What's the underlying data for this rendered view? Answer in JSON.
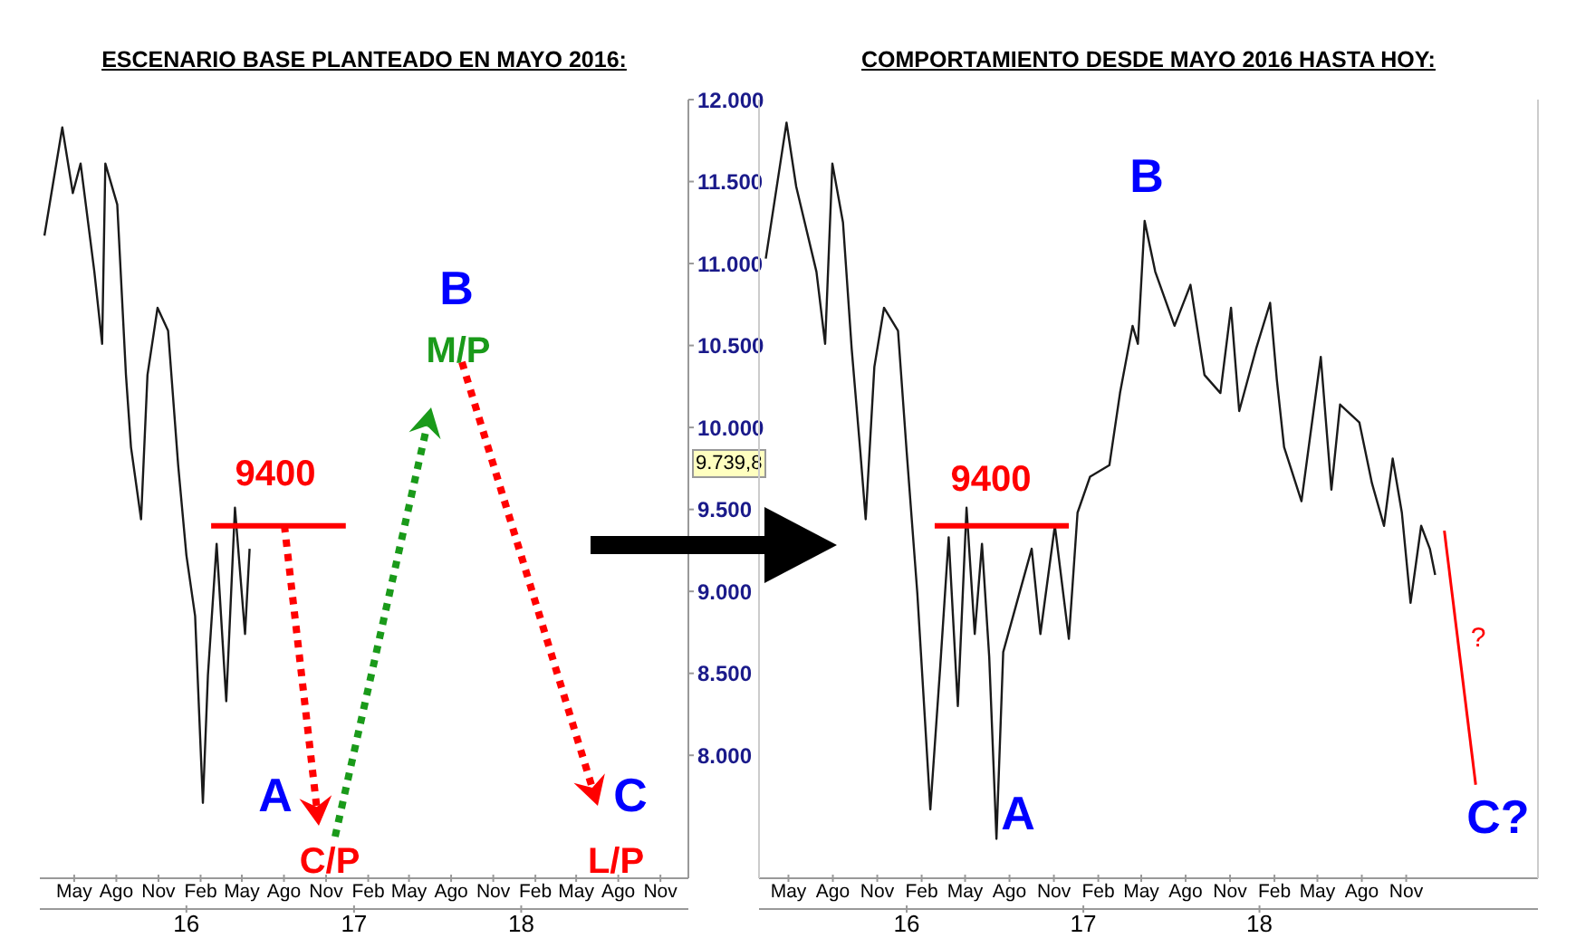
{
  "chart_data": [
    {
      "type": "line",
      "title": "ESCENARIO BASE PLANTEADO EN MAYO 2016:",
      "xlim": [
        "2015-02-15",
        "2019-01-01"
      ],
      "ylim": [
        7250,
        12000
      ],
      "xticks": [
        {
          "value": "2015-05-01",
          "label": "May"
        },
        {
          "value": "2015-08-01",
          "label": "Ago"
        },
        {
          "value": "2015-11-01",
          "label": "Nov"
        },
        {
          "value": "2016-02-01",
          "label": "Feb"
        },
        {
          "value": "2016-05-01",
          "label": "May"
        },
        {
          "value": "2016-08-01",
          "label": "Ago"
        },
        {
          "value": "2016-11-01",
          "label": "Nov"
        },
        {
          "value": "2017-02-01",
          "label": "Feb"
        },
        {
          "value": "2017-05-01",
          "label": "May"
        },
        {
          "value": "2017-08-01",
          "label": "Ago"
        },
        {
          "value": "2017-11-01",
          "label": "Nov"
        },
        {
          "value": "2018-02-01",
          "label": "Feb"
        },
        {
          "value": "2018-05-01",
          "label": "May"
        },
        {
          "value": "2018-08-01",
          "label": "Ago"
        },
        {
          "value": "2018-11-01",
          "label": "Nov"
        }
      ],
      "x2lim": [
        "2015-02-15",
        "2019-01-01"
      ],
      "x2ticks": [
        {
          "value": "2016-01-01",
          "label": "16"
        },
        {
          "value": "2017-01-01",
          "label": "17"
        },
        {
          "value": "2018-01-01",
          "label": "18"
        }
      ],
      "yticks": [
        {
          "value": 8000,
          "label": "8.000"
        },
        {
          "value": 8500,
          "label": "8.500"
        },
        {
          "value": 9000,
          "label": "9.000"
        },
        {
          "value": 9500,
          "label": "9.500"
        },
        {
          "value": 10000,
          "label": "10.000"
        },
        {
          "value": 10500,
          "label": "10.500"
        },
        {
          "value": 11000,
          "label": "11.000"
        },
        {
          "value": 11500,
          "label": "11.500"
        },
        {
          "value": 12000,
          "label": "12.000"
        }
      ],
      "series": [
        {
          "color": "#1a1a1a",
          "x": [
            "2015-02-25",
            "2015-04-05",
            "2015-04-28",
            "2015-05-15",
            "2015-06-14",
            "2015-07-01",
            "2015-07-08",
            "2015-08-03",
            "2015-08-22",
            "2015-09-02",
            "2015-09-24",
            "2015-10-08",
            "2015-10-30",
            "2015-11-22",
            "2015-12-14",
            "2016-01-01",
            "2016-01-20",
            "2016-02-06",
            "2016-02-17",
            "2016-03-07",
            "2016-03-28",
            "2016-04-16",
            "2016-05-08",
            "2016-05-18"
          ],
          "values": [
            11170,
            11830,
            11430,
            11610,
            10950,
            10510,
            11610,
            11360,
            10320,
            9880,
            9440,
            10320,
            10730,
            10590,
            9770,
            9220,
            8850,
            7710,
            8490,
            9290,
            8330,
            9510,
            8740,
            9260
          ]
        },
        {
          "color": "#ff0000",
          "x": [
            "2016-02-24",
            "2016-12-14"
          ],
          "values": [
            9400,
            9400
          ]
        }
      ],
      "annotations": [
        "9400",
        "A",
        "B",
        "C",
        "C/P",
        "M/P",
        "L/P",
        "9.739,8"
      ]
    },
    {
      "type": "line",
      "title": "COMPORTAMIENTO DESDE MAYO 2016 HASTA HOY:",
      "xlim": [
        "2015-03-01",
        "2019-08-01"
      ],
      "ylim": [
        7250,
        12000
      ],
      "tick_labels": "x",
      "xticks": [
        {
          "value": "2015-05-01",
          "label": "May"
        },
        {
          "value": "2015-08-01",
          "label": "Ago"
        },
        {
          "value": "2015-11-01",
          "label": "Nov"
        },
        {
          "value": "2016-02-01",
          "label": "Feb"
        },
        {
          "value": "2016-05-01",
          "label": "May"
        },
        {
          "value": "2016-08-01",
          "label": "Ago"
        },
        {
          "value": "2016-11-01",
          "label": "Nov"
        },
        {
          "value": "2017-02-01",
          "label": "Feb"
        },
        {
          "value": "2017-05-01",
          "label": "May"
        },
        {
          "value": "2017-08-01",
          "label": "Ago"
        },
        {
          "value": "2017-11-01",
          "label": "Nov"
        },
        {
          "value": "2018-02-01",
          "label": "Feb"
        },
        {
          "value": "2018-05-01",
          "label": "May"
        },
        {
          "value": "2018-08-01",
          "label": "Ago"
        },
        {
          "value": "2018-11-01",
          "label": "Nov"
        }
      ],
      "x2lim": [
        "2015-03-01",
        "2019-08-01"
      ],
      "x2ticks": [
        {
          "value": "2016-01-01",
          "label": "16"
        },
        {
          "value": "2017-01-01",
          "label": "17"
        },
        {
          "value": "2018-01-01",
          "label": "18"
        }
      ],
      "series": [
        {
          "color": "#1a1a1a",
          "x": [
            "2015-03-15",
            "2015-04-27",
            "2015-05-17",
            "2015-06-28",
            "2015-07-16",
            "2015-07-31",
            "2015-08-22",
            "2015-09-09",
            "2015-09-27",
            "2015-10-08",
            "2015-10-26",
            "2015-11-15",
            "2015-12-14",
            "2016-01-01",
            "2016-01-23",
            "2016-02-19",
            "2016-03-10",
            "2016-03-28",
            "2016-04-16",
            "2016-05-04",
            "2016-05-21",
            "2016-06-05",
            "2016-06-20",
            "2016-07-05",
            "2016-07-19",
            "2016-08-16",
            "2016-09-16",
            "2016-10-04",
            "2016-11-03",
            "2016-12-02",
            "2016-12-20",
            "2017-01-15",
            "2017-02-24",
            "2017-03-18",
            "2017-04-13",
            "2017-04-24",
            "2017-05-08",
            "2017-05-30",
            "2017-07-09",
            "2017-08-11",
            "2017-09-09",
            "2017-10-12",
            "2017-11-03",
            "2017-11-20",
            "2017-12-25",
            "2018-01-23",
            "2018-02-06",
            "2018-02-21",
            "2018-03-29",
            "2018-05-08",
            "2018-05-30",
            "2018-06-17",
            "2018-07-27",
            "2018-08-22",
            "2018-09-16",
            "2018-10-04",
            "2018-10-23",
            "2018-11-10",
            "2018-12-02",
            "2018-12-20",
            "2018-12-31"
          ],
          "values": [
            11030,
            11860,
            11470,
            10950,
            10510,
            11610,
            11250,
            10480,
            9850,
            9440,
            10370,
            10730,
            10590,
            9850,
            8990,
            7670,
            8520,
            9330,
            8300,
            9510,
            8740,
            9290,
            8600,
            7490,
            8630,
            8930,
            9260,
            8740,
            9400,
            8710,
            9480,
            9700,
            9770,
            10210,
            10620,
            10510,
            11260,
            10950,
            10620,
            10870,
            10320,
            10210,
            10730,
            10100,
            10480,
            10760,
            10290,
            9880,
            9550,
            10430,
            9620,
            10140,
            10030,
            9660,
            9400,
            9810,
            9480,
            8930,
            9400,
            9260,
            9100
          ]
        },
        {
          "color": "#ff0000",
          "x": [
            "2016-02-28",
            "2016-12-02"
          ],
          "values": [
            9400,
            9400
          ]
        },
        {
          "color": "#ff0000",
          "x": [
            "2019-01-19",
            "2019-03-25"
          ],
          "values": [
            9370,
            7820
          ]
        }
      ],
      "annotations": [
        "9400",
        "A",
        "B",
        "C?",
        "?"
      ]
    }
  ]
}
